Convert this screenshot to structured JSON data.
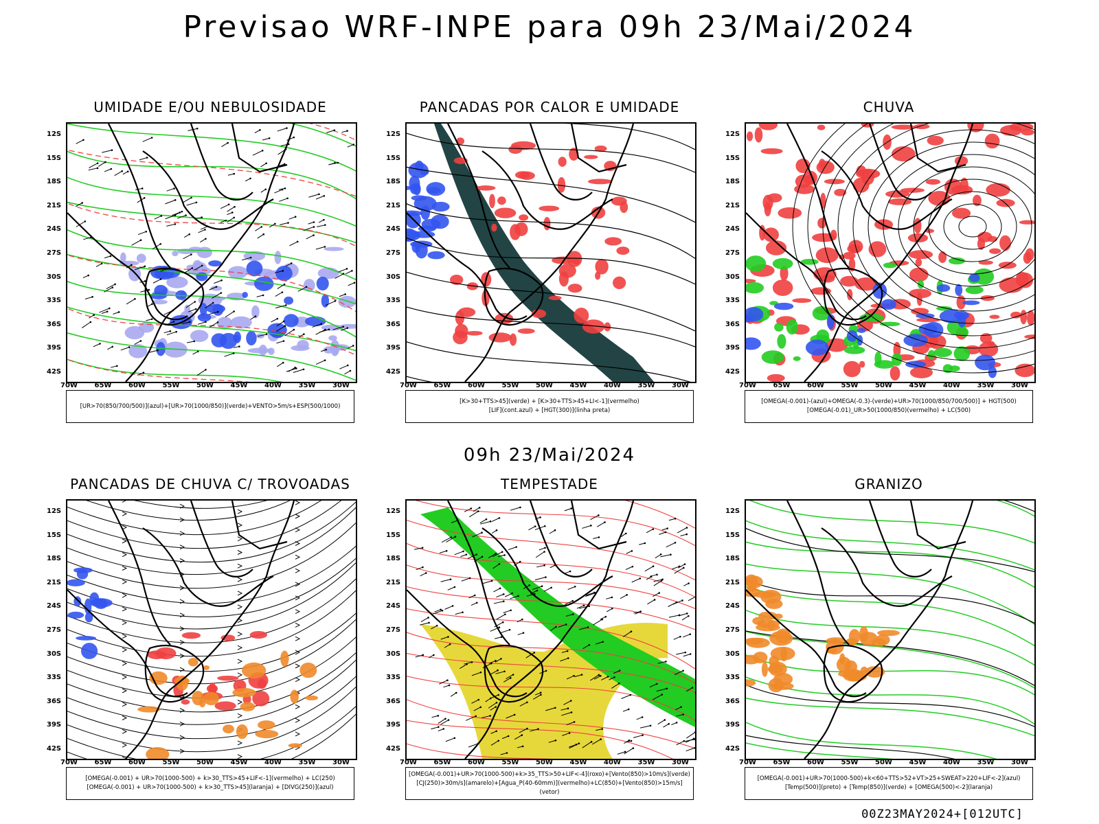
{
  "main_title": "Previsao WRF-INPE  para 09h 23/Mai/2024",
  "mid_title": "09h 23/Mai/2024",
  "footer": "00Z23MAY2024+[012UTC]",
  "lat_labels": [
    "12S",
    "15S",
    "18S",
    "21S",
    "24S",
    "27S",
    "30S",
    "33S",
    "36S",
    "39S",
    "42S"
  ],
  "lon_labels": [
    "70W",
    "65W",
    "60W",
    "55W",
    "50W",
    "45W",
    "40W",
    "35W",
    "30W"
  ],
  "panels": [
    {
      "title": "UMIDADE E/OU NEBULOSIDADE",
      "legend": [
        "[UR>70(850/700/500)](azul)+[UR>70(1000/850)](verde)+VENTO>5m/s+ESP(500/1000)"
      ]
    },
    {
      "title": "PANCADAS POR CALOR E UMIDADE",
      "legend": [
        "[K>30+TTS>45](verde) + [K>30+TTS>45+LI<-1](vermelho)",
        "[LIF](cont.azul) + [HGT(300)](linha preta)"
      ]
    },
    {
      "title": "CHUVA",
      "legend": [
        "[OMEGA(-0.001)-(azul)+OMEGA(-0.3)-(verde)+UR>70(1000/850/700/500)] + HGT(500)",
        "[OMEGA(-0.01)_UR>50(1000/850)(vermelho) + LC(500)"
      ]
    },
    {
      "title": "PANCADAS DE CHUVA C/ TROVOADAS",
      "legend": [
        "[OMEGA(-0.001) + UR>70(1000-500) + k>30_TTS>45+LIF<-1](vermelho) + LC(250)",
        "[OMEGA(-0.001) + UR>70(1000-500) + k>30_TTS>45](laranja) + [DIVG(250)](azul)"
      ]
    },
    {
      "title": "TEMPESTADE",
      "legend": [
        "[OMEGA(-0.001)+UR>70(1000-500)+k>35_TTS>50+LIF<-4](roxo)+[Vento(850)>10m/s](verde)",
        "[CJ(250)>30m/s](amarelo)+[Agua_P(40-60mm)](vermelho)+LC(850)+[Vento(850)>15m/s](vetor)"
      ]
    },
    {
      "title": "GRANIZO",
      "legend": [
        "[OMEGA(-0.001)+UR>70(1000-500)+k<60+TTS>52+VT>25+SWEAT>220+LIF<-2](azul)",
        "[Temp(500)](preto) + [Temp(850)](verde) + [OMEGA(500)<-2](laranja)"
      ]
    }
  ],
  "colors": {
    "red": "#f04040",
    "green": "#22cc22",
    "blue": "#3355ee",
    "lightblue": "#a8a8f0",
    "darkteal": "#224444",
    "yellow": "#e6d83a",
    "orange": "#f08a2a"
  }
}
